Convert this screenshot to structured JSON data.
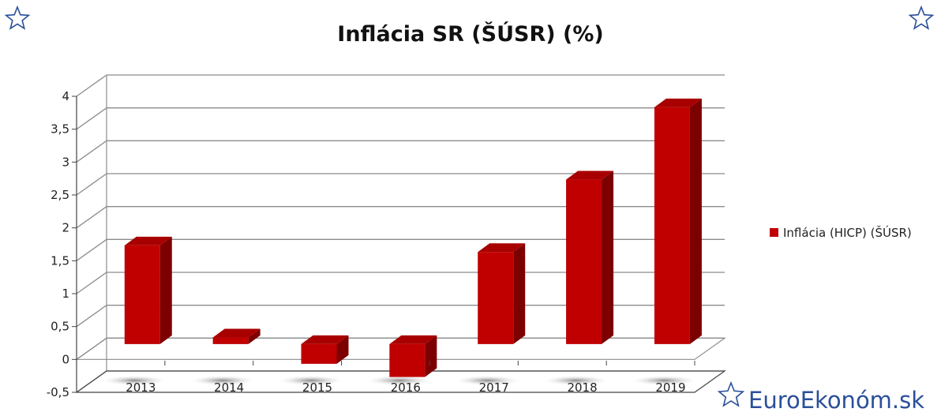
{
  "chart_data": {
    "type": "bar",
    "title": "Inflácia SR (ŠÚSR) (%)",
    "categories": [
      "2013",
      "2014",
      "2015",
      "2016",
      "2017",
      "2018",
      "2019"
    ],
    "series": [
      {
        "name": "Inflácia (HICP) (ŠÚSR)",
        "values": [
          1.5,
          0.1,
          -0.3,
          -0.5,
          1.4,
          2.5,
          3.6
        ]
      }
    ],
    "yticks": [
      "4",
      "3,5",
      "3",
      "2,5",
      "2",
      "1,5",
      "1",
      "0,5",
      "0",
      "-0,5"
    ],
    "ylim": [
      -0.5,
      4
    ],
    "xlabel": "",
    "ylabel": "",
    "grid": true,
    "legend_position": "right",
    "bar_color": "#c00000",
    "bar_side_color": "#7d0000",
    "bar_top_color": "#a80000"
  },
  "brand": {
    "text": "EuroEkonóm.sk",
    "color": "#2a4f9a",
    "icon": "star-outline-icon"
  }
}
